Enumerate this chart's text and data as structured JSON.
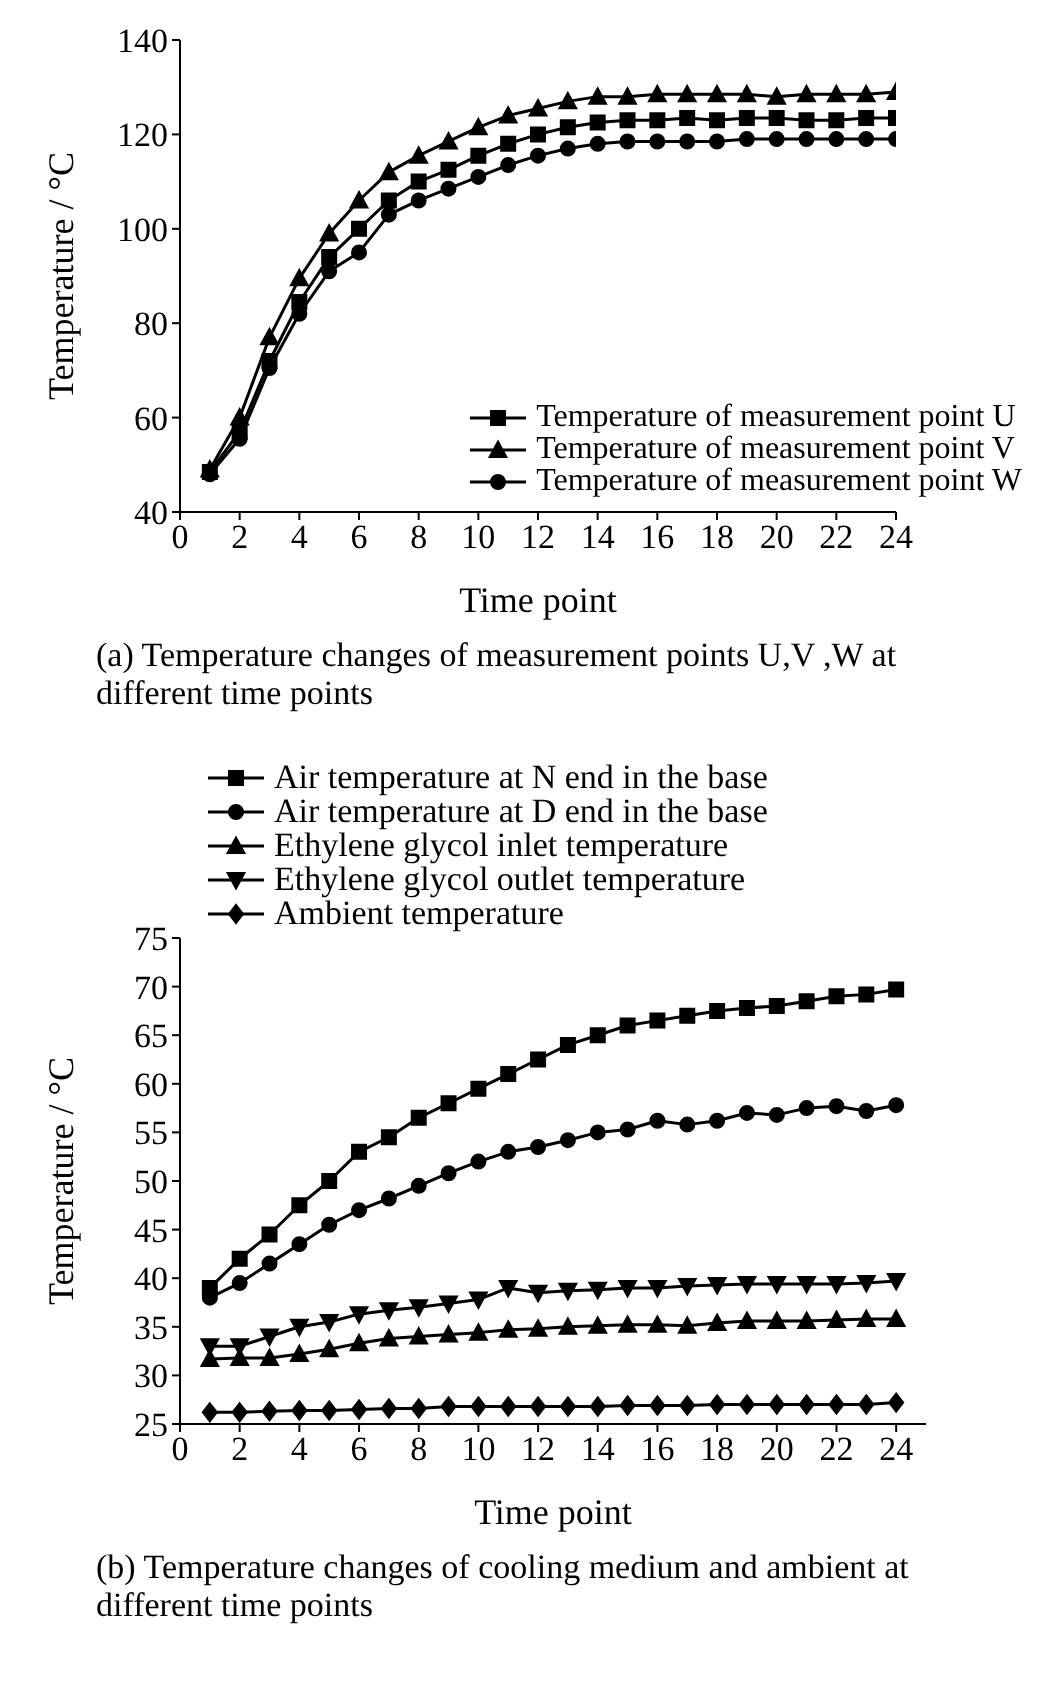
{
  "chart_data": [
    {
      "type": "line",
      "title": "(a) Temperature changes of measurement points U,V ,W at different time points",
      "xlabel": "Time point",
      "ylabel": "Temperature / °C",
      "x": [
        1,
        2,
        3,
        4,
        5,
        6,
        7,
        8,
        9,
        10,
        11,
        12,
        13,
        14,
        15,
        16,
        17,
        18,
        19,
        20,
        21,
        22,
        23,
        24
      ],
      "xlim": [
        0,
        24
      ],
      "xticks": [
        0,
        2,
        4,
        6,
        8,
        10,
        12,
        14,
        16,
        18,
        20,
        22,
        24
      ],
      "ylim": [
        40,
        140
      ],
      "yticks": [
        40,
        60,
        80,
        100,
        120,
        140
      ],
      "grid": false,
      "legend": "bottom right",
      "line_style": "solid",
      "series": [
        {
          "name": "Temperature of measurement point U",
          "color": "#000000",
          "marker": "square",
          "values": [
            48.5,
            57,
            72,
            84.5,
            94,
            100,
            106,
            110,
            112.5,
            115.5,
            118,
            120,
            121.5,
            122.5,
            123,
            123,
            123.5,
            123,
            123.5,
            123.5,
            123,
            123,
            123.5,
            123.5
          ]
        },
        {
          "name": "Temperature of measurement point V",
          "color": "#000000",
          "marker": "triangle",
          "values": [
            49,
            60,
            77,
            89.5,
            99,
            106,
            112,
            115.5,
            118.5,
            121.5,
            124,
            125.5,
            127,
            128,
            128,
            128.5,
            128.5,
            128.5,
            128.5,
            128,
            128.5,
            128.5,
            128.5,
            129
          ]
        },
        {
          "name": "Temperature of measurement point W",
          "color": "#000000",
          "marker": "circle",
          "values": [
            48,
            55.5,
            70.5,
            82,
            91,
            95,
            103,
            106,
            108.5,
            111,
            113.5,
            115.5,
            117,
            118,
            118.5,
            118.5,
            118.5,
            118.5,
            119,
            119,
            119,
            119,
            119,
            119
          ]
        }
      ]
    },
    {
      "type": "line",
      "title": "(b) Temperature changes of cooling medium and ambient at different time points",
      "xlabel": "Time point",
      "ylabel": "Temperature / °C",
      "x": [
        1,
        2,
        3,
        4,
        5,
        6,
        7,
        8,
        9,
        10,
        11,
        12,
        13,
        14,
        15,
        16,
        17,
        18,
        19,
        20,
        21,
        22,
        23,
        24
      ],
      "xlim": [
        0,
        25
      ],
      "xticks": [
        0,
        2,
        4,
        6,
        8,
        10,
        12,
        14,
        16,
        18,
        20,
        22,
        24
      ],
      "ylim": [
        25,
        75
      ],
      "yticks": [
        25,
        30,
        35,
        40,
        45,
        50,
        55,
        60,
        65,
        70,
        75
      ],
      "grid": false,
      "legend": "top",
      "line_style": "solid",
      "series": [
        {
          "name": "Air temperature at N end in the base",
          "color": "#000000",
          "marker": "square",
          "values": [
            39,
            42,
            44.5,
            47.5,
            50,
            53,
            54.5,
            56.5,
            58,
            59.5,
            61,
            62.5,
            64,
            65,
            66,
            66.5,
            67,
            67.5,
            67.8,
            68,
            68.5,
            69,
            69.2,
            69.7
          ]
        },
        {
          "name": "Air temperature at D end in the base",
          "color": "#000000",
          "marker": "circle",
          "values": [
            38,
            39.5,
            41.5,
            43.5,
            45.5,
            47,
            48.2,
            49.5,
            50.8,
            52,
            53,
            53.5,
            54.2,
            55,
            55.3,
            56.2,
            55.8,
            56.2,
            57,
            56.8,
            57.5,
            57.7,
            57.2,
            57.8
          ]
        },
        {
          "name": "Ethylene glycol inlet temperature",
          "color": "#000000",
          "marker": "triangle",
          "values": [
            31.7,
            31.8,
            31.8,
            32.2,
            32.7,
            33.3,
            33.8,
            34,
            34.2,
            34.4,
            34.7,
            34.8,
            35,
            35.1,
            35.2,
            35.2,
            35.1,
            35.4,
            35.6,
            35.6,
            35.6,
            35.7,
            35.8,
            35.8
          ]
        },
        {
          "name": "Ethylene glycol outlet temperature",
          "color": "#000000",
          "marker": "triangle-down",
          "values": [
            33,
            33,
            34,
            35,
            35.5,
            36.3,
            36.7,
            37,
            37.4,
            37.8,
            39,
            38.5,
            38.7,
            38.8,
            39,
            39,
            39.2,
            39.3,
            39.4,
            39.4,
            39.4,
            39.4,
            39.5,
            39.7
          ]
        },
        {
          "name": "Ambient temperature",
          "color": "#000000",
          "marker": "diamond",
          "values": [
            26.2,
            26.2,
            26.3,
            26.4,
            26.4,
            26.5,
            26.6,
            26.6,
            26.8,
            26.8,
            26.8,
            26.8,
            26.8,
            26.8,
            26.9,
            26.9,
            26.9,
            27,
            27,
            27,
            27,
            27,
            27,
            27.2
          ]
        }
      ]
    }
  ]
}
